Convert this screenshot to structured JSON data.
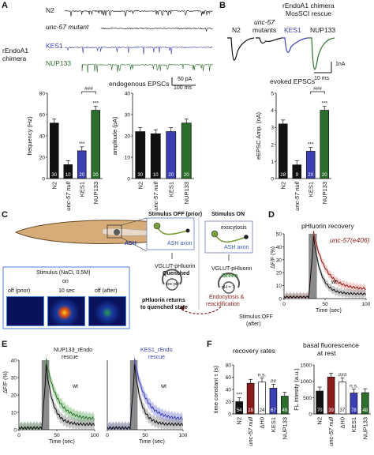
{
  "panels": {
    "A": {
      "label": "A",
      "trace_labels": [
        "N2",
        "unc-57 mutant",
        "KES1",
        "NUP133"
      ],
      "chimera_label_1": "rEndoA1",
      "chimera_label_2": "chimera",
      "endo_title": "endogenous EPSCs",
      "scale_1": "50 pA",
      "scale_2": "100 ms"
    },
    "B": {
      "label": "B",
      "header_1": "rEndoA1 chimera",
      "header_2": "MosSCI rescue",
      "trace_labels": [
        "N2",
        "unc-57",
        "mutants",
        "KES1",
        "NUP133"
      ],
      "scale_1": "1nA",
      "scale_2": "10 ms",
      "evoked_title": "evoked EPSCs"
    },
    "C": {
      "label": "C",
      "stim_off_prior": "Stimulus OFF (prior)",
      "stim_on": "Stimulus ON",
      "ash": "ASH",
      "ash_axon": "ASH axon",
      "exocytosis": "exocytosis",
      "vglut_1": "VGLUT-pHluorin",
      "quenched": "Quenched",
      "vglut_2": "VGLUT-pHluorin",
      "green": "Green",
      "low_ph": "low pH",
      "ph7": "pH = 7",
      "returns_1": "pHluorin returns",
      "returns_2": "to quenched state",
      "endo_1": "Endocytosis &",
      "endo_2": "reacidification",
      "stim_off_after_1": "Stimulus OFF",
      "stim_off_after_2": "(after)",
      "stim_nacl": "Stimulus (NaCl, 0.5M)",
      "on": "on",
      "ten_sec": "10 sec",
      "off_prior": "off (prior)",
      "off_after": "off (after)"
    },
    "D": {
      "label": "D",
      "title": "pHluorin recovery",
      "series_label": "unc-57(e406)",
      "wt": "wt",
      "ylabel": "ΔF/F (%)",
      "xlabel": "Time (sec)"
    },
    "E": {
      "label": "E",
      "legend_left_1": "NUP133_rEndo",
      "legend_left_2": "rescue",
      "legend_right_1": "KES1_rEndo",
      "legend_right_2": "rescue",
      "wt": "wt",
      "ylabel": "ΔF/F (%)",
      "xlabel": "Time (sec)"
    },
    "F": {
      "label": "F",
      "title_left": "recovery rates",
      "title_right_1": "basal fluorescence",
      "title_right_2": "at rest"
    }
  },
  "chart_data": [
    {
      "id": "A-frequency",
      "type": "bar",
      "categories": [
        "N2",
        "unc-57 null",
        "KES1",
        "NUP133"
      ],
      "values": [
        52,
        13,
        26,
        64
      ],
      "n_labels": [
        "30",
        "10",
        "20",
        "20"
      ],
      "sig": [
        "",
        "",
        "***",
        "***"
      ],
      "bracket": "###",
      "ylabel": "frequency (Hz)",
      "yticks": [
        "0",
        "20",
        "40",
        "60",
        "80"
      ],
      "ylim": [
        0,
        80
      ],
      "colors": [
        "#111111",
        "#111111",
        "#3b3fb4",
        "#2c6e2c"
      ]
    },
    {
      "id": "A-amplitude",
      "type": "bar",
      "categories": [
        "N2",
        "unc-57 null",
        "KES1",
        "NUP133"
      ],
      "values": [
        22,
        21,
        22,
        26
      ],
      "n_labels": [
        "30",
        "10",
        "20",
        "20"
      ],
      "ylabel": "amplitude (pA)",
      "yticks": [
        "0",
        "10",
        "20",
        "30",
        "40"
      ],
      "ylim": [
        0,
        40
      ],
      "colors": [
        "#111111",
        "#111111",
        "#3b3fb4",
        "#2c6e2c"
      ]
    },
    {
      "id": "B-amplitude",
      "type": "bar",
      "categories": [
        "N2",
        "unc-57 null",
        "KES1",
        "NUP133"
      ],
      "values": [
        3.2,
        0.8,
        1.6,
        4.0
      ],
      "n_labels": [
        "28",
        "9",
        "20",
        "20"
      ],
      "sig": [
        "",
        "",
        "***",
        "***"
      ],
      "bracket": "###",
      "ylabel": "eEPSC Amp. (nA)",
      "yticks": [
        "0",
        "1",
        "2",
        "3",
        "4",
        "5"
      ],
      "ylim": [
        0,
        5
      ],
      "colors": [
        "#111111",
        "#111111",
        "#3b3fb4",
        "#2c6e2c"
      ]
    },
    {
      "id": "D-recovery",
      "type": "line",
      "xticks": [
        "0",
        "50",
        "100"
      ],
      "yticks": [
        "0",
        "10",
        "20",
        "30",
        "40",
        "50"
      ],
      "xlim": [
        0,
        100
      ],
      "ylim": [
        0,
        50
      ],
      "series": [
        {
          "name": "unc-57(e406)",
          "color": "#8b1a1a",
          "band": "#e7a89e"
        },
        {
          "name": "wt",
          "color": "#111111",
          "band": "#9a9a9a"
        }
      ]
    },
    {
      "id": "E-NUP133",
      "type": "line",
      "xticks": [
        "0",
        "50",
        "100"
      ],
      "yticks": [
        "0",
        "10",
        "20",
        "30",
        "40"
      ],
      "xlim": [
        0,
        100
      ],
      "ylim": [
        0,
        40
      ],
      "series": [
        {
          "name": "NUP133_rEndo rescue",
          "color": "#2d6e2d",
          "band": "#7fbf7f"
        },
        {
          "name": "wt",
          "color": "#111111",
          "band": "#9a9a9a"
        }
      ]
    },
    {
      "id": "E-KES1",
      "type": "line",
      "xticks": [
        "0",
        "50",
        "100"
      ],
      "xlim": [
        0,
        100
      ],
      "ylim": [
        0,
        40
      ],
      "series": [
        {
          "name": "KES1_rEndo rescue",
          "color": "#3b3fb4",
          "band": "#8f93dd"
        },
        {
          "name": "wt",
          "color": "#111111",
          "band": "#9a9a9a"
        }
      ]
    },
    {
      "id": "F-recovery",
      "type": "bar",
      "categories": [
        "N2",
        "unc-57 null",
        "ΔH0",
        "KES1",
        "NUP133"
      ],
      "values": [
        20,
        50,
        52,
        42,
        29
      ],
      "n_labels": [
        "54",
        "28",
        "24",
        "67",
        "49"
      ],
      "sig": [
        "***",
        "",
        "n.s.",
        "##",
        ""
      ],
      "ylabel": "time constant τ (s)",
      "yticks": [
        "0",
        "20",
        "40",
        "60",
        "80"
      ],
      "ylim": [
        0,
        80
      ],
      "colors": [
        "#111111",
        "#8b1a1a",
        "#ffffff",
        "#3b3fb4",
        "#2c6e2c"
      ]
    },
    {
      "id": "F-basal",
      "type": "bar",
      "categories": [
        "N2",
        "unc-57 null",
        "ΔH0",
        "KES1",
        "NUP133"
      ],
      "values": [
        700,
        1130,
        980,
        640,
        650
      ],
      "n_labels": [
        "70",
        "39",
        "37",
        "78",
        "48"
      ],
      "sig": [
        "",
        "",
        "###",
        "n.s.",
        ""
      ],
      "ylabel": "FL intesity (a.u.)",
      "yticks": [
        "0",
        "500",
        "1000",
        "1500"
      ],
      "ylim": [
        0,
        1500
      ],
      "colors": [
        "#111111",
        "#8b1a1a",
        "#ffffff",
        "#3b3fb4",
        "#2c6e2c"
      ]
    }
  ]
}
